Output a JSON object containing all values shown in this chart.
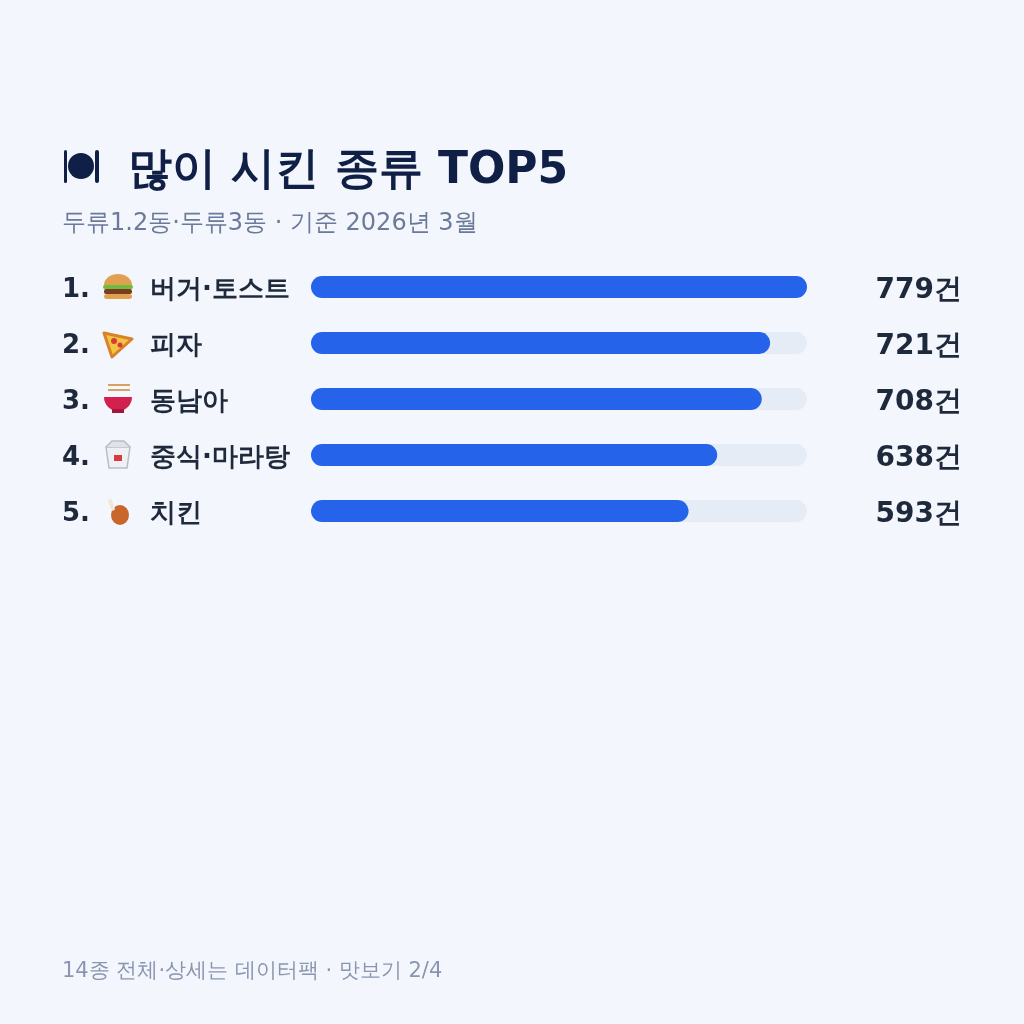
{
  "chart_data": {
    "type": "bar",
    "orientation": "horizontal",
    "title": "많이 시킨 종류 TOP5",
    "subtitle": "두류1.2동·두류3동 · 기준 2026년 3월",
    "categories": [
      "1. 버거·토스트",
      "2. 피자",
      "3. 동남아",
      "4. 중식·마라탕",
      "5. 치킨"
    ],
    "values": [
      779,
      721,
      708,
      638,
      593
    ],
    "value_labels": [
      "779건",
      "721건",
      "708건",
      "638건",
      "593건"
    ],
    "color": "#2563eb",
    "annotations": [
      "14종 전체·상세는 데이터팩 · 맛보기 2/4"
    ]
  }
}
